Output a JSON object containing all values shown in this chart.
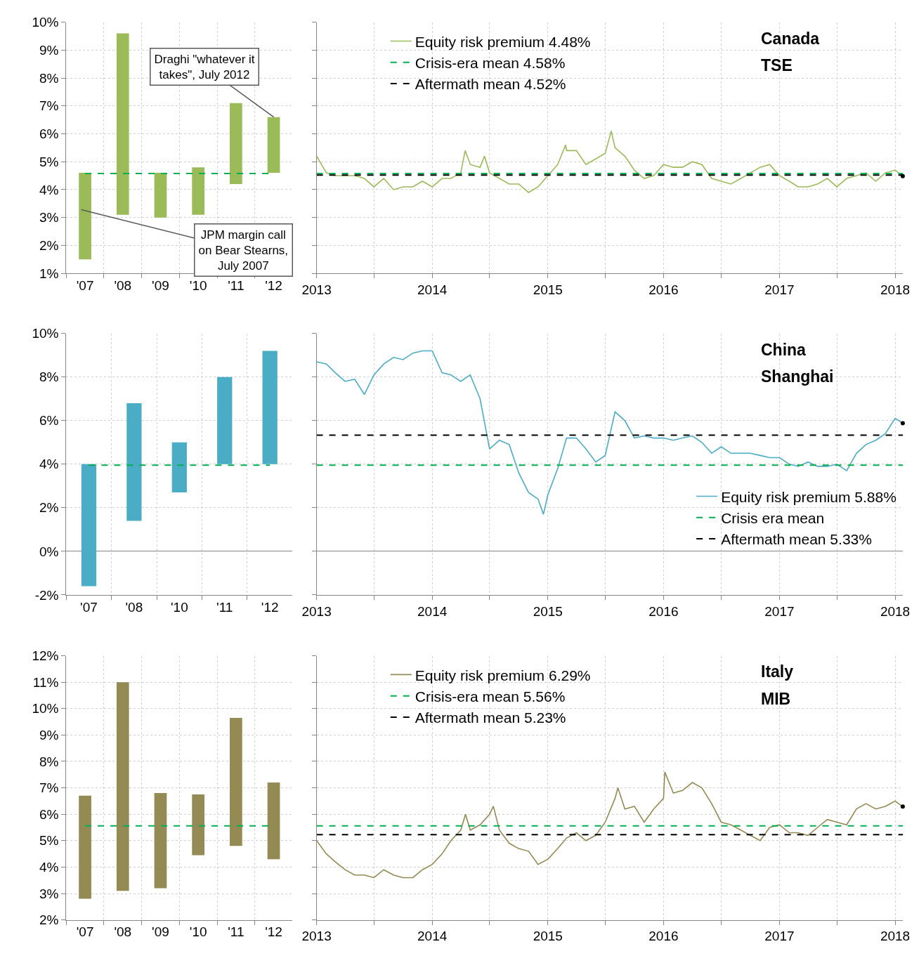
{
  "chart_data": [
    {
      "type": "bar",
      "categories": [
        "'07",
        "'08",
        "'09",
        "'10",
        "'11",
        "'12"
      ],
      "base": [
        1.5,
        3.1,
        3.0,
        3.1,
        4.2,
        4.6
      ],
      "values": [
        3.1,
        6.5,
        1.6,
        1.7,
        2.9,
        2.0
      ],
      "color": "#9bbb59",
      "ylim": [
        1,
        10
      ],
      "yticks": [
        {
          "value": 1,
          "label": "1%"
        },
        {
          "value": 2,
          "label": "2%"
        },
        {
          "value": 3,
          "label": "3%"
        },
        {
          "value": 4,
          "label": "4%"
        },
        {
          "value": 5,
          "label": "5%"
        },
        {
          "value": 6,
          "label": "6%"
        },
        {
          "value": 7,
          "label": "7%"
        },
        {
          "value": 8,
          "label": "8%"
        },
        {
          "value": 9,
          "label": "9%"
        },
        {
          "value": 10,
          "label": "10%"
        }
      ],
      "grid": true,
      "ref_lines": [
        {
          "axis": "y",
          "value": 4.58,
          "color": "#00b050",
          "line_style": "dashed"
        }
      ],
      "annotations": [
        {
          "text": "Draghi \"whatever it takes\", July 2012",
          "x": "'12",
          "y": 6.6
        },
        "JPM margin call on Bear Stearns, July 2007"
      ]
    },
    {
      "type": "line",
      "title": "Canada",
      "subtitle": "TSE",
      "x": [
        "2013-01",
        "2013-02",
        "2013-03",
        "2013-04",
        "2013-05",
        "2013-06",
        "2013-07",
        "2013-08",
        "2013-09",
        "2013-10",
        "2013-11",
        "2013-12",
        "2014-01",
        "2014-02",
        "2014-03",
        "2014-04",
        "2014-04-15",
        "2014-05",
        "2014-06",
        "2014-06-15",
        "2014-07",
        "2014-08",
        "2014-09",
        "2014-10",
        "2014-11",
        "2014-12",
        "2015-01",
        "2015-02",
        "2015-02-26",
        "2015-03",
        "2015-04",
        "2015-05",
        "2015-06",
        "2015-07",
        "2015-07-20",
        "2015-08",
        "2015-09",
        "2015-10",
        "2015-11",
        "2015-12",
        "2016-01",
        "2016-02",
        "2016-03",
        "2016-04",
        "2016-05",
        "2016-06",
        "2016-07",
        "2016-08",
        "2016-09",
        "2016-10",
        "2016-11",
        "2016-12",
        "2017-01",
        "2017-02",
        "2017-03",
        "2017-04",
        "2017-05",
        "2017-06",
        "2017-07",
        "2017-08",
        "2017-09",
        "2017-10",
        "2017-11",
        "2017-12",
        "2018-01",
        "2018-01-25"
      ],
      "series": [
        {
          "name": "Equity risk premium 4.48%",
          "color": "#9bbb59",
          "values": [
            5.2,
            4.6,
            4.5,
            4.5,
            4.5,
            4.4,
            4.1,
            4.4,
            4.0,
            4.1,
            4.1,
            4.3,
            4.1,
            4.4,
            4.4,
            4.6,
            5.4,
            4.9,
            4.8,
            5.2,
            4.6,
            4.4,
            4.2,
            4.2,
            3.9,
            4.1,
            4.5,
            4.9,
            5.6,
            5.4,
            5.4,
            4.9,
            5.1,
            5.3,
            6.1,
            5.5,
            5.2,
            4.7,
            4.4,
            4.5,
            4.9,
            4.8,
            4.8,
            5.0,
            4.9,
            4.4,
            4.3,
            4.2,
            4.4,
            4.6,
            4.8,
            4.9,
            4.5,
            4.3,
            4.1,
            4.1,
            4.2,
            4.4,
            4.1,
            4.4,
            4.5,
            4.6,
            4.3,
            4.6,
            4.7,
            4.48
          ]
        },
        {
          "type": "scatter",
          "marker": "circle",
          "x": [
            "2018-01-25"
          ],
          "values": [
            4.48
          ],
          "color": "#000000"
        }
      ],
      "ref_lines": [
        {
          "axis": "y",
          "value": 4.58,
          "label": "Crisis-era mean 4.58%",
          "color": "#00b050",
          "line_style": "dashed"
        },
        {
          "axis": "y",
          "value": 4.52,
          "label": "Aftermath mean 4.52%",
          "color": "#000000",
          "line_style": "dashed"
        }
      ],
      "xlim": [
        "2013-01-01",
        "2018-01-26"
      ],
      "xticks": [
        {
          "value": "2013-01-01",
          "label": "2013"
        },
        {
          "value": "2013-07-01",
          "label": null
        },
        {
          "value": "2014-01-01",
          "label": "2014"
        },
        {
          "value": "2014-07-01",
          "label": null
        },
        {
          "value": "2015-01-01",
          "label": "2015"
        },
        {
          "value": "2015-07-01",
          "label": null
        },
        {
          "value": "2016-01-01",
          "label": "2016"
        },
        {
          "value": "2016-07-01",
          "label": null
        },
        {
          "value": "2017-01-01",
          "label": "2017"
        },
        {
          "value": "2017-07-01",
          "label": null
        },
        {
          "value": "2018-01-01",
          "label": "2018"
        }
      ],
      "ylim": [
        1,
        10
      ],
      "yticks": [
        1,
        2,
        3,
        4,
        5,
        6,
        7,
        8,
        9,
        10
      ],
      "tick_labels": "x",
      "grid": true,
      "legend": "top left"
    },
    {
      "type": "bar",
      "categories": [
        "'07",
        "'08",
        "'10",
        "'11",
        "'12"
      ],
      "base": [
        -1.6,
        1.4,
        2.7,
        4.0,
        4.0
      ],
      "values": [
        5.6,
        5.4,
        2.3,
        4.0,
        5.2
      ],
      "color": "#4bacc6",
      "ylim": [
        -2,
        10
      ],
      "yticks": [
        {
          "value": -2,
          "label": "-2%"
        },
        {
          "value": 0,
          "label": "0%"
        },
        {
          "value": 2,
          "label": "2%"
        },
        {
          "value": 4,
          "label": "4%"
        },
        {
          "value": 6,
          "label": "6%"
        },
        {
          "value": 8,
          "label": "8%"
        },
        {
          "value": 10,
          "label": "10%"
        }
      ],
      "grid": true,
      "ref_lines": [
        {
          "axis": "y",
          "value": 3.95,
          "color": "#00b050",
          "line_style": "dashed"
        }
      ]
    },
    {
      "type": "line",
      "title": "China",
      "subtitle": "Shanghai",
      "x": [
        "2013-01",
        "2013-02",
        "2013-03",
        "2013-04",
        "2013-05",
        "2013-06",
        "2013-07",
        "2013-08",
        "2013-09",
        "2013-10",
        "2013-11",
        "2013-12",
        "2014-01",
        "2014-02",
        "2014-03",
        "2014-04",
        "2014-05",
        "2014-06",
        "2014-07",
        "2014-08",
        "2014-09",
        "2014-10",
        "2014-11",
        "2014-12",
        "2014-12-18",
        "2015-01",
        "2015-02",
        "2015-03",
        "2015-04",
        "2015-05",
        "2015-06",
        "2015-07",
        "2015-08",
        "2015-09",
        "2015-10",
        "2015-11",
        "2015-12",
        "2016-01",
        "2016-02",
        "2016-03",
        "2016-04",
        "2016-05",
        "2016-06",
        "2016-07",
        "2016-08",
        "2016-09",
        "2016-10",
        "2016-11",
        "2016-12",
        "2017-01",
        "2017-02",
        "2017-03",
        "2017-04",
        "2017-05",
        "2017-06",
        "2017-07",
        "2017-08",
        "2017-09",
        "2017-10",
        "2017-11",
        "2017-12",
        "2018-01",
        "2018-01-25"
      ],
      "series": [
        {
          "name": "Equity risk premium 5.88%",
          "color": "#4bacc6",
          "values": [
            8.7,
            8.6,
            8.2,
            7.8,
            7.9,
            7.2,
            8.1,
            8.6,
            8.9,
            8.8,
            9.1,
            9.2,
            9.2,
            8.2,
            8.1,
            7.8,
            8.1,
            7.0,
            4.7,
            5.1,
            4.9,
            3.6,
            2.7,
            2.4,
            1.7,
            2.6,
            3.8,
            5.2,
            5.2,
            4.7,
            4.1,
            4.4,
            6.4,
            6.0,
            5.2,
            5.3,
            5.2,
            5.2,
            5.1,
            5.2,
            5.3,
            5.0,
            4.5,
            4.8,
            4.5,
            4.5,
            4.5,
            4.4,
            4.3,
            4.3,
            4.0,
            3.9,
            4.1,
            3.9,
            3.9,
            4.0,
            3.7,
            4.5,
            4.9,
            5.1,
            5.4,
            6.1,
            5.88
          ]
        },
        {
          "type": "scatter",
          "marker": "circle",
          "x": [
            "2018-01-25"
          ],
          "values": [
            5.88
          ],
          "color": "#000000"
        }
      ],
      "ref_lines": [
        {
          "axis": "y",
          "value": 3.95,
          "label": "Crisis era mean",
          "color": "#00b050",
          "line_style": "dashed"
        },
        {
          "axis": "y",
          "value": 5.33,
          "label": "Aftermath mean 5.33%",
          "color": "#000000",
          "line_style": "dashed"
        }
      ],
      "xlim": [
        "2013-01-01",
        "2018-01-26"
      ],
      "xticks": [
        {
          "value": "2013-01-01",
          "label": "2013"
        },
        {
          "value": "2013-07-01",
          "label": null
        },
        {
          "value": "2014-01-01",
          "label": "2014"
        },
        {
          "value": "2014-07-01",
          "label": null
        },
        {
          "value": "2015-01-01",
          "label": "2015"
        },
        {
          "value": "2015-07-01",
          "label": null
        },
        {
          "value": "2016-01-01",
          "label": "2016"
        },
        {
          "value": "2016-07-01",
          "label": null
        },
        {
          "value": "2017-01-01",
          "label": "2017"
        },
        {
          "value": "2017-07-01",
          "label": null
        },
        {
          "value": "2018-01-01",
          "label": "2018"
        }
      ],
      "ylim": [
        -2,
        10
      ],
      "yticks": [
        -2,
        0,
        2,
        4,
        6,
        8,
        10
      ],
      "tick_labels": "x",
      "grid": true,
      "legend": "bottom right"
    },
    {
      "type": "bar",
      "categories": [
        "'07",
        "'08",
        "'09",
        "'10",
        "'11",
        "'12"
      ],
      "base": [
        2.8,
        3.1,
        3.2,
        4.45,
        4.8,
        4.3
      ],
      "values": [
        3.9,
        7.9,
        3.6,
        2.3,
        4.85,
        2.9
      ],
      "color": "#948a54",
      "ylim": [
        2,
        12
      ],
      "yticks": [
        {
          "value": 2,
          "label": "2%"
        },
        {
          "value": 3,
          "label": "3%"
        },
        {
          "value": 4,
          "label": "4%"
        },
        {
          "value": 5,
          "label": "5%"
        },
        {
          "value": 6,
          "label": "6%"
        },
        {
          "value": 7,
          "label": "7%"
        },
        {
          "value": 8,
          "label": "8%"
        },
        {
          "value": 9,
          "label": "9%"
        },
        {
          "value": 10,
          "label": "10%"
        },
        {
          "value": 11,
          "label": "11%"
        },
        {
          "value": 12,
          "label": "12%"
        }
      ],
      "grid": true,
      "ref_lines": [
        {
          "axis": "y",
          "value": 5.56,
          "color": "#00b050",
          "line_style": "dashed"
        }
      ]
    },
    {
      "type": "line",
      "title": "Italy",
      "subtitle": "MIB",
      "x": [
        "2013-01",
        "2013-02",
        "2013-03",
        "2013-04",
        "2013-05",
        "2013-06",
        "2013-07",
        "2013-08",
        "2013-09",
        "2013-10",
        "2013-11",
        "2013-12",
        "2014-01",
        "2014-02",
        "2014-03",
        "2014-04",
        "2014-04-16",
        "2014-05",
        "2014-06",
        "2014-07",
        "2014-07-13",
        "2014-08",
        "2014-09",
        "2014-10",
        "2014-11",
        "2014-12",
        "2015-01",
        "2015-02",
        "2015-03",
        "2015-04",
        "2015-05",
        "2015-06",
        "2015-07",
        "2015-08",
        "2015-08-10",
        "2015-09",
        "2015-10",
        "2015-11",
        "2015-12",
        "2016-01",
        "2016-01-05",
        "2016-02",
        "2016-03",
        "2016-04",
        "2016-05",
        "2016-06",
        "2016-07",
        "2016-08",
        "2016-09",
        "2016-10",
        "2016-11",
        "2016-12",
        "2017-01",
        "2017-02",
        "2017-03",
        "2017-04",
        "2017-05",
        "2017-06",
        "2017-07",
        "2017-08",
        "2017-09",
        "2017-10",
        "2017-11",
        "2017-12",
        "2018-01",
        "2018-01-25"
      ],
      "series": [
        {
          "name": "Equity risk premium 6.29%",
          "color": "#948a54",
          "values": [
            5.0,
            4.5,
            4.2,
            3.9,
            3.7,
            3.7,
            3.6,
            3.9,
            3.7,
            3.6,
            3.6,
            3.9,
            4.1,
            4.5,
            5.0,
            5.4,
            6.0,
            5.4,
            5.6,
            6.0,
            6.3,
            5.4,
            4.9,
            4.7,
            4.6,
            4.1,
            4.3,
            4.7,
            5.1,
            5.3,
            5.0,
            5.2,
            5.7,
            6.6,
            7.0,
            6.2,
            6.3,
            5.7,
            6.2,
            6.6,
            7.6,
            6.8,
            6.9,
            7.2,
            7.0,
            6.4,
            5.7,
            5.6,
            5.4,
            5.2,
            5.0,
            5.5,
            5.6,
            5.3,
            5.3,
            5.2,
            5.5,
            5.8,
            5.7,
            5.6,
            6.2,
            6.4,
            6.2,
            6.3,
            6.5,
            6.29
          ]
        },
        {
          "type": "scatter",
          "marker": "circle",
          "x": [
            "2018-01-25"
          ],
          "values": [
            6.29
          ],
          "color": "#000000"
        }
      ],
      "ref_lines": [
        {
          "axis": "y",
          "value": 5.56,
          "label": "Crisis-era mean 5.56%",
          "color": "#00b050",
          "line_style": "dashed"
        },
        {
          "axis": "y",
          "value": 5.23,
          "label": "Aftermath mean 5.23%",
          "color": "#000000",
          "line_style": "dashed"
        }
      ],
      "xlim": [
        "2013-01-01",
        "2018-01-26"
      ],
      "xticks": [
        {
          "value": "2013-01-01",
          "label": "2013"
        },
        {
          "value": "2013-07-01",
          "label": null
        },
        {
          "value": "2014-01-01",
          "label": "2014"
        },
        {
          "value": "2014-07-01",
          "label": null
        },
        {
          "value": "2015-01-01",
          "label": "2015"
        },
        {
          "value": "2015-07-01",
          "label": null
        },
        {
          "value": "2016-01-01",
          "label": "2016"
        },
        {
          "value": "2016-07-01",
          "label": null
        },
        {
          "value": "2017-01-01",
          "label": "2017"
        },
        {
          "value": "2017-07-01",
          "label": null
        },
        {
          "value": "2018-01-01",
          "label": "2018"
        }
      ],
      "ylim": [
        2,
        12
      ],
      "yticks": [
        2,
        3,
        4,
        5,
        6,
        7,
        8,
        9,
        10,
        11,
        12
      ],
      "tick_labels": "x",
      "grid": true,
      "legend": "top left"
    }
  ]
}
